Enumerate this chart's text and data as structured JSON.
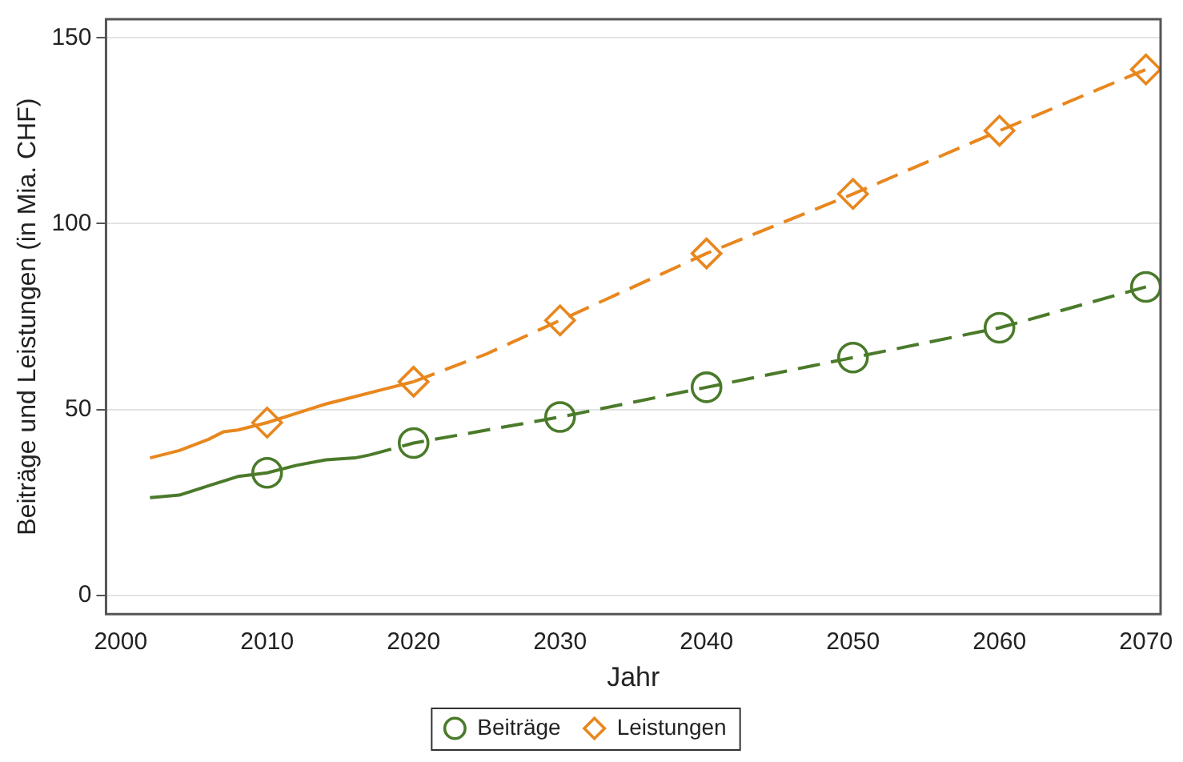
{
  "chart_data": {
    "type": "line",
    "xlabel": "Jahr",
    "ylabel": "Beiträge und Leistungen (in Mia. CHF)",
    "xlim": [
      1999,
      2071
    ],
    "xticks": [
      2000,
      2010,
      2020,
      2030,
      2040,
      2050,
      2060,
      2070
    ],
    "ylim": [
      -5,
      155
    ],
    "yticks": [
      0,
      50,
      100,
      150
    ],
    "grid": "y",
    "legend": "bottom",
    "series": [
      {
        "type": "line",
        "color": "#4a7a2a",
        "line_style": "solid",
        "marker": "none",
        "x": [
          2002,
          2004,
          2006,
          2008,
          2010,
          2012,
          2014,
          2016,
          2017
        ],
        "values": [
          26.3,
          27,
          29.5,
          32,
          33,
          35,
          36.5,
          37,
          37.8
        ]
      },
      {
        "type": "line",
        "color": "#4a7a2a",
        "line_style": "dashed",
        "marker": "none",
        "x": [
          2017,
          2020,
          2030,
          2040,
          2050,
          2060,
          2070
        ],
        "values": [
          37.8,
          41,
          48,
          56,
          64,
          72,
          83
        ]
      },
      {
        "type": "line",
        "color": "#e8871e",
        "line_style": "solid",
        "marker": "none",
        "x": [
          2002,
          2004,
          2006,
          2007,
          2008,
          2010,
          2012,
          2014,
          2016,
          2018,
          2020
        ],
        "values": [
          37,
          39,
          42,
          44,
          44.5,
          46.5,
          49,
          51.5,
          53.5,
          55.5,
          57.5
        ]
      },
      {
        "type": "line",
        "color": "#e8871e",
        "line_style": "dashed",
        "marker": "none",
        "x": [
          2020,
          2025,
          2030,
          2040,
          2050,
          2060,
          2070
        ],
        "values": [
          57.5,
          65,
          74,
          92,
          108,
          125,
          141.5
        ]
      },
      {
        "type": "scatter",
        "name": "Beiträge",
        "color": "#4a7a2a",
        "marker": "circle",
        "x": [
          2010,
          2020,
          2030,
          2040,
          2050,
          2060,
          2070
        ],
        "values": [
          33,
          41,
          48,
          56,
          64,
          72,
          83
        ]
      },
      {
        "type": "scatter",
        "name": "Leistungen",
        "color": "#e8871e",
        "marker": "diamond",
        "x": [
          2010,
          2020,
          2030,
          2040,
          2050,
          2060,
          2070
        ],
        "values": [
          46.5,
          57.5,
          74,
          92,
          108,
          125,
          141.5
        ]
      }
    ]
  }
}
